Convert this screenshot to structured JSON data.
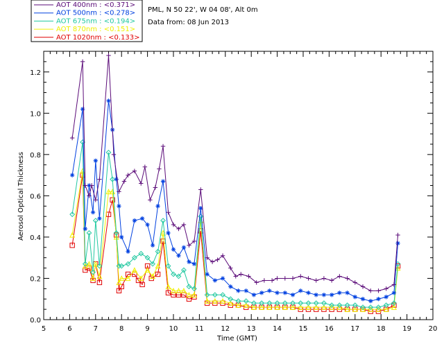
{
  "header": {
    "site_line": "PML, N 50 22', W 04 08', Alt 0m",
    "date_line": "Data from: 08 Jun 2013"
  },
  "chart_data": {
    "type": "line",
    "xlabel": "Time (GMT)",
    "ylabel": "Aerosol Optical Thickness",
    "xlim": [
      5,
      20
    ],
    "ylim": [
      0.0,
      1.3
    ],
    "x_ticks": [
      5,
      6,
      7,
      8,
      9,
      10,
      11,
      12,
      13,
      14,
      15,
      16,
      17,
      18,
      19,
      20
    ],
    "y_ticks": [
      0.0,
      0.2,
      0.4,
      0.6,
      0.8,
      1.0,
      1.2
    ],
    "legend_position": "top-left outside",
    "series": [
      {
        "name": "AOT  400nm  : <0.371>",
        "color": "#5a0a78",
        "marker": "plus",
        "points": [
          [
            6.1,
            0.88
          ],
          [
            6.5,
            1.25
          ],
          [
            6.6,
            0.65
          ],
          [
            6.75,
            0.6
          ],
          [
            6.85,
            0.65
          ],
          [
            7.0,
            0.58
          ],
          [
            7.15,
            0.68
          ],
          [
            7.5,
            1.28
          ],
          [
            7.7,
            0.8
          ],
          [
            7.9,
            0.62
          ],
          [
            8.1,
            0.67
          ],
          [
            8.25,
            0.7
          ],
          [
            8.5,
            0.72
          ],
          [
            8.75,
            0.66
          ],
          [
            8.9,
            0.74
          ],
          [
            9.1,
            0.58
          ],
          [
            9.3,
            0.64
          ],
          [
            9.45,
            0.73
          ],
          [
            9.6,
            0.84
          ],
          [
            9.8,
            0.52
          ],
          [
            10.0,
            0.46
          ],
          [
            10.2,
            0.44
          ],
          [
            10.4,
            0.46
          ],
          [
            10.6,
            0.36
          ],
          [
            10.8,
            0.38
          ],
          [
            11.05,
            0.63
          ],
          [
            11.3,
            0.3
          ],
          [
            11.5,
            0.28
          ],
          [
            11.7,
            0.29
          ],
          [
            11.9,
            0.31
          ],
          [
            12.2,
            0.25
          ],
          [
            12.4,
            0.21
          ],
          [
            12.6,
            0.22
          ],
          [
            12.9,
            0.21
          ],
          [
            13.2,
            0.18
          ],
          [
            13.5,
            0.19
          ],
          [
            13.8,
            0.19
          ],
          [
            14.0,
            0.2
          ],
          [
            14.3,
            0.2
          ],
          [
            14.6,
            0.2
          ],
          [
            14.9,
            0.21
          ],
          [
            15.2,
            0.2
          ],
          [
            15.5,
            0.19
          ],
          [
            15.8,
            0.2
          ],
          [
            16.1,
            0.19
          ],
          [
            16.4,
            0.21
          ],
          [
            16.7,
            0.2
          ],
          [
            17.0,
            0.18
          ],
          [
            17.3,
            0.16
          ],
          [
            17.6,
            0.14
          ],
          [
            17.9,
            0.14
          ],
          [
            18.2,
            0.15
          ],
          [
            18.5,
            0.17
          ],
          [
            18.65,
            0.41
          ]
        ]
      },
      {
        "name": "AOT  500nm  : <0.278>",
        "color": "#0040e0",
        "marker": "asterisk",
        "points": [
          [
            6.1,
            0.7
          ],
          [
            6.5,
            1.02
          ],
          [
            6.6,
            0.44
          ],
          [
            6.75,
            0.65
          ],
          [
            6.9,
            0.52
          ],
          [
            7.0,
            0.77
          ],
          [
            7.15,
            0.49
          ],
          [
            7.5,
            1.06
          ],
          [
            7.65,
            0.92
          ],
          [
            7.8,
            0.68
          ],
          [
            7.9,
            0.55
          ],
          [
            8.0,
            0.4
          ],
          [
            8.25,
            0.33
          ],
          [
            8.5,
            0.48
          ],
          [
            8.8,
            0.49
          ],
          [
            9.0,
            0.46
          ],
          [
            9.2,
            0.36
          ],
          [
            9.4,
            0.55
          ],
          [
            9.6,
            0.67
          ],
          [
            9.8,
            0.42
          ],
          [
            10.0,
            0.34
          ],
          [
            10.2,
            0.31
          ],
          [
            10.4,
            0.35
          ],
          [
            10.6,
            0.28
          ],
          [
            10.8,
            0.27
          ],
          [
            11.05,
            0.54
          ],
          [
            11.3,
            0.22
          ],
          [
            11.6,
            0.19
          ],
          [
            11.9,
            0.2
          ],
          [
            12.2,
            0.16
          ],
          [
            12.5,
            0.14
          ],
          [
            12.8,
            0.14
          ],
          [
            13.1,
            0.12
          ],
          [
            13.4,
            0.13
          ],
          [
            13.7,
            0.14
          ],
          [
            14.0,
            0.13
          ],
          [
            14.3,
            0.13
          ],
          [
            14.6,
            0.12
          ],
          [
            14.9,
            0.14
          ],
          [
            15.2,
            0.13
          ],
          [
            15.5,
            0.12
          ],
          [
            15.8,
            0.12
          ],
          [
            16.1,
            0.12
          ],
          [
            16.4,
            0.13
          ],
          [
            16.7,
            0.13
          ],
          [
            17.0,
            0.11
          ],
          [
            17.3,
            0.1
          ],
          [
            17.6,
            0.09
          ],
          [
            17.9,
            0.1
          ],
          [
            18.2,
            0.11
          ],
          [
            18.5,
            0.13
          ],
          [
            18.65,
            0.37
          ]
        ]
      },
      {
        "name": "AOT  675nm  : <0.194>",
        "color": "#20c8a0",
        "marker": "diamond",
        "points": [
          [
            6.1,
            0.51
          ],
          [
            6.5,
            0.86
          ],
          [
            6.6,
            0.27
          ],
          [
            6.75,
            0.42
          ],
          [
            6.9,
            0.23
          ],
          [
            7.0,
            0.48
          ],
          [
            7.15,
            0.26
          ],
          [
            7.5,
            0.81
          ],
          [
            7.65,
            0.68
          ],
          [
            7.8,
            0.42
          ],
          [
            7.9,
            0.26
          ],
          [
            8.0,
            0.26
          ],
          [
            8.25,
            0.27
          ],
          [
            8.5,
            0.3
          ],
          [
            8.75,
            0.32
          ],
          [
            9.0,
            0.3
          ],
          [
            9.2,
            0.27
          ],
          [
            9.4,
            0.33
          ],
          [
            9.6,
            0.48
          ],
          [
            9.8,
            0.26
          ],
          [
            10.0,
            0.22
          ],
          [
            10.2,
            0.21
          ],
          [
            10.4,
            0.24
          ],
          [
            10.6,
            0.16
          ],
          [
            10.8,
            0.15
          ],
          [
            11.05,
            0.5
          ],
          [
            11.3,
            0.12
          ],
          [
            11.6,
            0.12
          ],
          [
            11.9,
            0.12
          ],
          [
            12.2,
            0.1
          ],
          [
            12.5,
            0.09
          ],
          [
            12.8,
            0.09
          ],
          [
            13.1,
            0.08
          ],
          [
            13.4,
            0.08
          ],
          [
            13.7,
            0.08
          ],
          [
            14.0,
            0.08
          ],
          [
            14.3,
            0.08
          ],
          [
            14.6,
            0.08
          ],
          [
            14.9,
            0.08
          ],
          [
            15.2,
            0.08
          ],
          [
            15.5,
            0.08
          ],
          [
            15.8,
            0.08
          ],
          [
            16.1,
            0.07
          ],
          [
            16.4,
            0.07
          ],
          [
            16.7,
            0.07
          ],
          [
            17.0,
            0.07
          ],
          [
            17.3,
            0.06
          ],
          [
            17.6,
            0.06
          ],
          [
            17.9,
            0.06
          ],
          [
            18.2,
            0.07
          ],
          [
            18.5,
            0.08
          ],
          [
            18.65,
            0.27
          ]
        ]
      },
      {
        "name": "AOT  870nm  : <0.151>",
        "color": "#f0f000",
        "marker": "triangle",
        "points": [
          [
            6.1,
            0.41
          ],
          [
            6.5,
            0.72
          ],
          [
            6.6,
            0.26
          ],
          [
            6.75,
            0.27
          ],
          [
            6.9,
            0.2
          ],
          [
            7.0,
            0.27
          ],
          [
            7.15,
            0.21
          ],
          [
            7.5,
            0.62
          ],
          [
            7.65,
            0.62
          ],
          [
            7.8,
            0.4
          ],
          [
            7.9,
            0.18
          ],
          [
            8.0,
            0.2
          ],
          [
            8.25,
            0.2
          ],
          [
            8.5,
            0.24
          ],
          [
            8.75,
            0.2
          ],
          [
            9.0,
            0.24
          ],
          [
            9.2,
            0.21
          ],
          [
            9.4,
            0.26
          ],
          [
            9.6,
            0.42
          ],
          [
            9.8,
            0.16
          ],
          [
            10.0,
            0.14
          ],
          [
            10.2,
            0.14
          ],
          [
            10.4,
            0.14
          ],
          [
            10.6,
            0.12
          ],
          [
            10.8,
            0.12
          ],
          [
            11.05,
            0.48
          ],
          [
            11.3,
            0.09
          ],
          [
            11.6,
            0.09
          ],
          [
            11.9,
            0.09
          ],
          [
            12.2,
            0.08
          ],
          [
            12.5,
            0.07
          ],
          [
            12.8,
            0.07
          ],
          [
            13.1,
            0.06
          ],
          [
            13.4,
            0.06
          ],
          [
            13.7,
            0.06
          ],
          [
            14.0,
            0.06
          ],
          [
            14.3,
            0.06
          ],
          [
            14.6,
            0.06
          ],
          [
            14.9,
            0.06
          ],
          [
            15.2,
            0.06
          ],
          [
            15.5,
            0.06
          ],
          [
            15.8,
            0.06
          ],
          [
            16.1,
            0.06
          ],
          [
            16.4,
            0.06
          ],
          [
            16.7,
            0.05
          ],
          [
            17.0,
            0.05
          ],
          [
            17.3,
            0.05
          ],
          [
            17.6,
            0.05
          ],
          [
            17.9,
            0.05
          ],
          [
            18.2,
            0.05
          ],
          [
            18.5,
            0.06
          ],
          [
            18.65,
            0.25
          ]
        ]
      },
      {
        "name": "AOT 1020nm  : <0.133>",
        "color": "#e00000",
        "marker": "square",
        "points": [
          [
            6.1,
            0.36
          ],
          [
            6.5,
            0.7
          ],
          [
            6.6,
            0.24
          ],
          [
            6.75,
            0.25
          ],
          [
            6.9,
            0.19
          ],
          [
            7.0,
            0.27
          ],
          [
            7.15,
            0.18
          ],
          [
            7.5,
            0.51
          ],
          [
            7.65,
            0.58
          ],
          [
            7.8,
            0.41
          ],
          [
            7.9,
            0.14
          ],
          [
            8.0,
            0.16
          ],
          [
            8.25,
            0.22
          ],
          [
            8.5,
            0.22
          ],
          [
            8.65,
            0.19
          ],
          [
            8.8,
            0.17
          ],
          [
            9.0,
            0.26
          ],
          [
            9.15,
            0.2
          ],
          [
            9.4,
            0.22
          ],
          [
            9.6,
            0.38
          ],
          [
            9.8,
            0.13
          ],
          [
            10.0,
            0.12
          ],
          [
            10.2,
            0.12
          ],
          [
            10.4,
            0.12
          ],
          [
            10.6,
            0.1
          ],
          [
            10.8,
            0.11
          ],
          [
            11.05,
            0.43
          ],
          [
            11.3,
            0.08
          ],
          [
            11.6,
            0.08
          ],
          [
            11.9,
            0.08
          ],
          [
            12.2,
            0.07
          ],
          [
            12.5,
            0.07
          ],
          [
            12.8,
            0.06
          ],
          [
            13.1,
            0.06
          ],
          [
            13.4,
            0.06
          ],
          [
            13.7,
            0.06
          ],
          [
            14.0,
            0.06
          ],
          [
            14.3,
            0.06
          ],
          [
            14.6,
            0.06
          ],
          [
            14.9,
            0.05
          ],
          [
            15.2,
            0.05
          ],
          [
            15.5,
            0.05
          ],
          [
            15.8,
            0.05
          ],
          [
            16.1,
            0.05
          ],
          [
            16.4,
            0.05
          ],
          [
            16.7,
            0.05
          ],
          [
            17.0,
            0.05
          ],
          [
            17.3,
            0.05
          ],
          [
            17.6,
            0.04
          ],
          [
            17.9,
            0.04
          ],
          [
            18.2,
            0.05
          ],
          [
            18.5,
            0.07
          ],
          [
            18.65,
            0.26
          ]
        ]
      }
    ]
  }
}
